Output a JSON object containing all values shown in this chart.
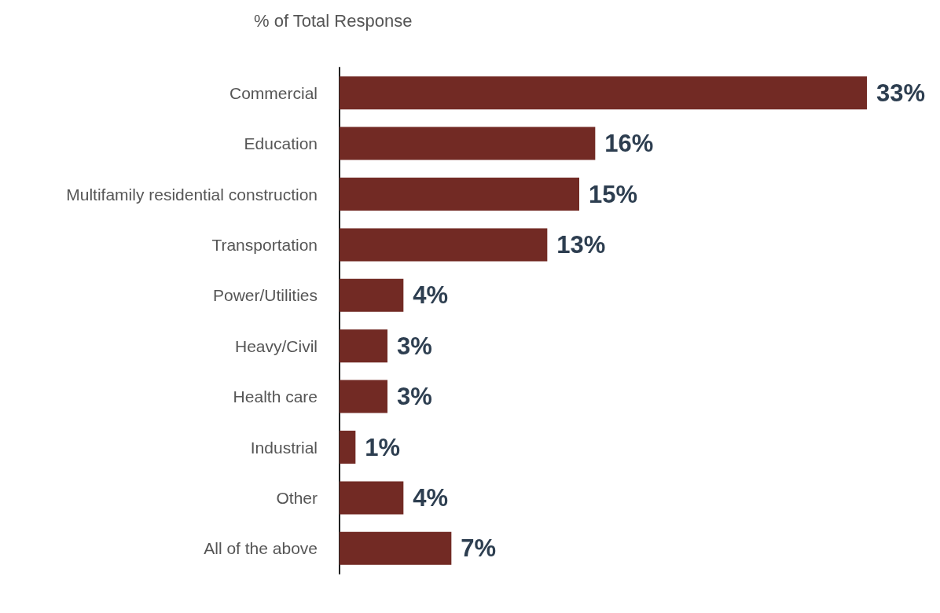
{
  "chart_data": {
    "type": "bar",
    "orientation": "horizontal",
    "title": "% of Total Response",
    "categories": [
      "Commercial",
      "Education",
      "Multifamily residential construction",
      "Transportation",
      "Power/Utilities",
      "Heavy/Civil",
      "Health care",
      "Industrial",
      "Other",
      "All of the above"
    ],
    "values": [
      33,
      16,
      15,
      13,
      4,
      3,
      3,
      1,
      4,
      7
    ],
    "value_labels": [
      "33%",
      "16%",
      "15%",
      "13%",
      "4%",
      "3%",
      "3%",
      "1%",
      "4%",
      "7%"
    ],
    "color": "#722a24"
  }
}
